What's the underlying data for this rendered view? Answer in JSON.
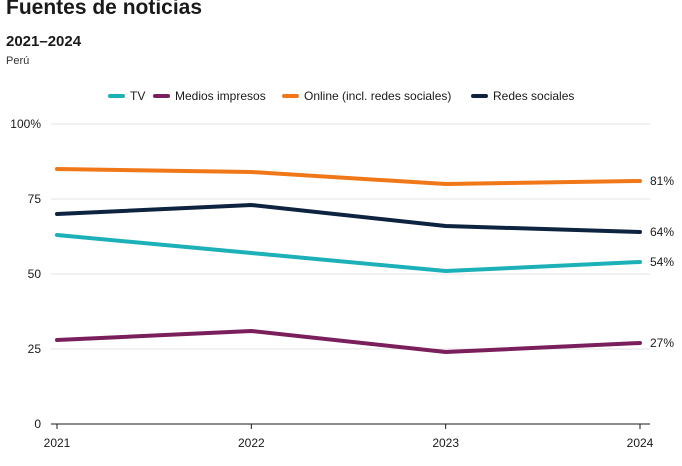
{
  "title": "Fuentes de noticias",
  "subtitle": "2021–2024",
  "note": "Perú",
  "chart_data": {
    "type": "line",
    "x": [
      "2021",
      "2022",
      "2023",
      "2024"
    ],
    "ylim": [
      0,
      100
    ],
    "yticks": [
      0,
      25,
      50,
      75,
      100
    ],
    "ytick_labels": [
      "0",
      "25",
      "50",
      "75",
      "100%"
    ],
    "grid": true,
    "legend_position": "top-center",
    "series": [
      {
        "name": "TV",
        "color": "#1cb0b8",
        "values": [
          63,
          57,
          51,
          54
        ],
        "end_label": "54%"
      },
      {
        "name": "Medios impresos",
        "color": "#7a1f5c",
        "values": [
          28,
          31,
          24,
          27
        ],
        "end_label": "27%"
      },
      {
        "name": "Online (incl. redes sociales)",
        "color": "#f07818",
        "values": [
          85,
          84,
          80,
          81
        ],
        "end_label": "81%"
      },
      {
        "name": "Redes sociales",
        "color": "#0d2340",
        "values": [
          70,
          73,
          66,
          64
        ],
        "end_label": "64%"
      }
    ]
  }
}
